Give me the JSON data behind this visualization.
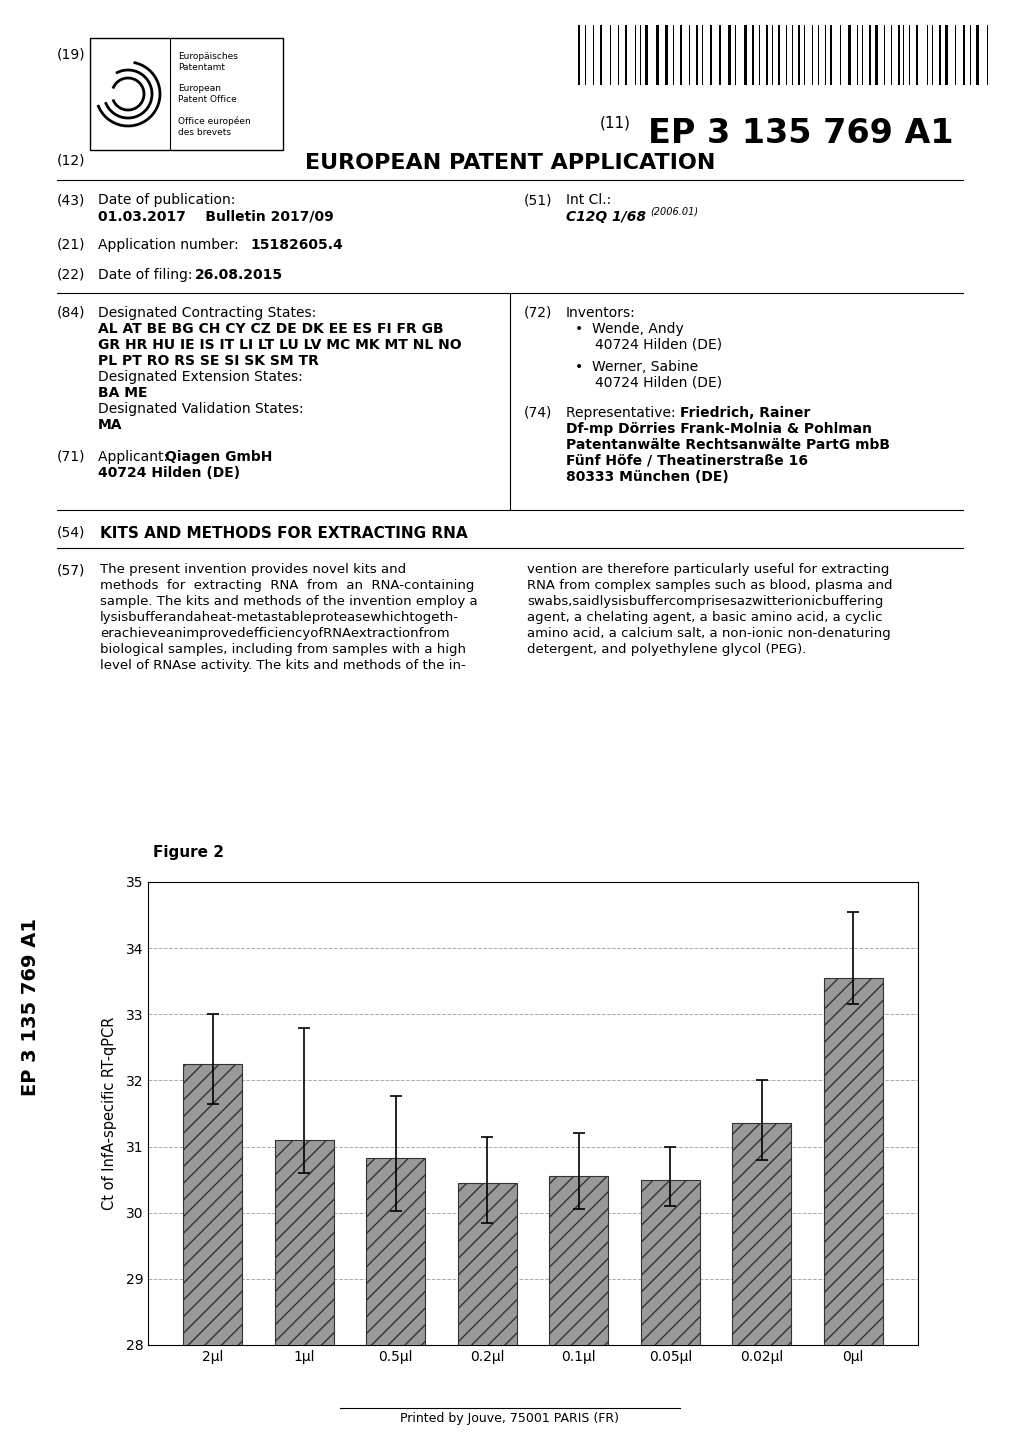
{
  "title": "KITS AND METHODS FOR EXTRACTING RNA",
  "patent_number": "EP 3 135 769 A1",
  "application_number": "15182605.4",
  "pub_date": "01.03.2017    Bulletin 2017/09",
  "filing_date": "26.08.2015",
  "int_cl": "C12Q 1/68",
  "int_cl_year": "(2006.01)",
  "figure_label": "Figure 2",
  "bar_categories": [
    "2μl",
    "1μl",
    "0.5μl",
    "0.2μl",
    "0.1μl",
    "0.05μl",
    "0.02μl",
    "0μl"
  ],
  "bar_values": [
    32.25,
    31.1,
    30.82,
    30.45,
    30.55,
    30.5,
    31.35,
    33.55
  ],
  "bar_errors_upper": [
    0.75,
    1.7,
    0.95,
    0.7,
    0.65,
    0.5,
    0.65,
    1.0
  ],
  "bar_errors_lower": [
    0.6,
    0.5,
    0.8,
    0.6,
    0.5,
    0.4,
    0.55,
    0.4
  ],
  "ylabel": "Ct of InfA-specific RT-qPCR",
  "ylim": [
    28,
    35
  ],
  "yticks": [
    28,
    29,
    30,
    31,
    32,
    33,
    34,
    35
  ],
  "background_color": "#ffffff",
  "grid_color": "#aaaaaa",
  "footer_text": "Printed by Jouve, 75001 PARIS (FR)"
}
